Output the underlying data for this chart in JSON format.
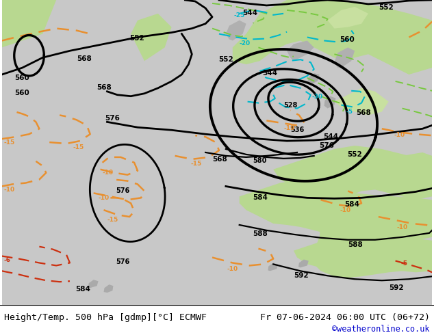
{
  "title_left": "Height/Temp. 500 hPa [gdmp][°C] ECMWF",
  "title_right": "Fr 07-06-2024 06:00 UTC (06+72)",
  "credit": "©weatheronline.co.uk",
  "bg_gray": "#c8c8c8",
  "land_green": "#b8d890",
  "land_green2": "#c8e0a0",
  "text_color": "#000000",
  "credit_color": "#0000cc",
  "orange": "#e89030",
  "cyan": "#00b8cc",
  "green_dash": "#78c840",
  "red_dash": "#cc3010",
  "figsize": [
    6.34,
    4.9
  ],
  "dpi": 100
}
